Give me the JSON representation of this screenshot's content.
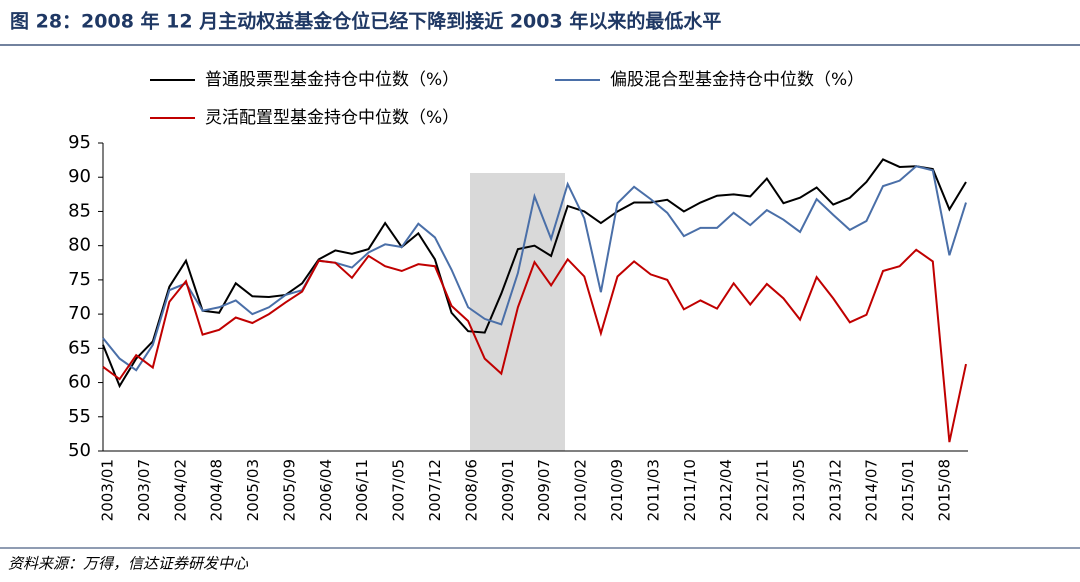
{
  "chart_data": {
    "type": "line",
    "title": "图 28：2008 年 12 月主动权益基金仓位已经下降到接近 2003 年以来的最低水平",
    "source": "资料来源：万得，信达证券研发中心",
    "x_labels": [
      "2003/01",
      "2003/07",
      "2004/02",
      "2004/08",
      "2005/03",
      "2005/09",
      "2006/04",
      "2006/11",
      "2007/05",
      "2007/12",
      "2008/06",
      "2009/01",
      "2009/07",
      "2010/02",
      "2010/09",
      "2011/03",
      "2011/10",
      "2012/04",
      "2012/11",
      "2013/05",
      "2013/12",
      "2014/07",
      "2015/01",
      "2015/08"
    ],
    "ylim": [
      50,
      95
    ],
    "yticks": [
      50,
      55,
      60,
      65,
      70,
      75,
      80,
      85,
      90,
      95
    ],
    "series": [
      {
        "name": "普通股票型基金持仓中位数（%）",
        "color": "#000000",
        "values": [
          65.5,
          59.5,
          63.5,
          66,
          74,
          77.8,
          70.5,
          70.2,
          74.5,
          72.6,
          72.5,
          72.8,
          74.5,
          78,
          79.3,
          78.8,
          79.5,
          83.3,
          79.8,
          81.8,
          78,
          70.2,
          67.5,
          67.3,
          73,
          79.5,
          80,
          78.5,
          85.8,
          85,
          83.3,
          85,
          86.3,
          86.3,
          86.7,
          85,
          86.3,
          87.3,
          87.5,
          87.2,
          89.8,
          86.2,
          87,
          88.5,
          86,
          87,
          89.3,
          92.6,
          91.5,
          91.6,
          91.2,
          85.3,
          89.3
        ]
      },
      {
        "name": "偏股混合型基金持仓中位数（%）",
        "color": "#4a6fa8",
        "values": [
          66.5,
          63.5,
          61.8,
          65.5,
          73.5,
          74.5,
          70.5,
          71,
          72,
          70,
          71,
          72.8,
          73.5,
          77.8,
          77.5,
          76.8,
          79,
          80.2,
          79.8,
          83.2,
          81.2,
          76.5,
          71,
          69.3,
          68.5,
          76,
          87.2,
          81,
          89,
          84,
          73.2,
          86.2,
          88.6,
          86.8,
          84.8,
          81.4,
          82.6,
          82.6,
          84.8,
          83,
          85.2,
          83.8,
          82,
          86.8,
          84.5,
          82.3,
          83.6,
          88.7,
          89.5,
          91.6,
          91,
          78.6,
          86.3
        ]
      },
      {
        "name": "灵活配置型基金持仓中位数（%）",
        "color": "#c00000",
        "values": [
          62.3,
          60.5,
          64,
          62.2,
          71.8,
          74.8,
          67,
          67.7,
          69.5,
          68.7,
          70,
          71.7,
          73.3,
          77.8,
          77.5,
          75.3,
          78.5,
          77,
          76.3,
          77.3,
          77,
          71.2,
          69,
          63.5,
          61.3,
          71,
          77.6,
          74.2,
          78,
          75.5,
          67.2,
          75.5,
          77.7,
          75.8,
          75,
          70.7,
          72,
          70.8,
          74.5,
          71.4,
          74.4,
          72.3,
          69.2,
          75.4,
          72.3,
          68.8,
          69.9,
          76.3,
          77,
          79.4,
          77.7,
          51.3,
          62.7
        ]
      }
    ]
  }
}
